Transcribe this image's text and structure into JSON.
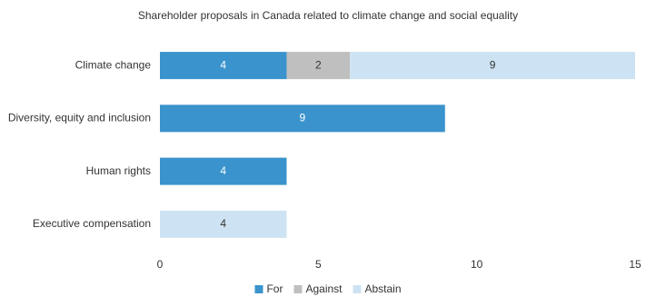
{
  "chart_data": {
    "type": "stacked-hbar",
    "title": "Shareholder  proposals  in Canada related  to climate change  and social equality",
    "categories": [
      "Climate change",
      "Diversity, equity and inclusion",
      "Human rights",
      "Executive compensation"
    ],
    "series": [
      {
        "name": "For",
        "color": "#3a93cc",
        "values": [
          4,
          9,
          4,
          0
        ]
      },
      {
        "name": "Against",
        "color": "#bfbfbf",
        "values": [
          2,
          0,
          0,
          0
        ]
      },
      {
        "name": "Abstain",
        "color": "#cde3f3",
        "values": [
          9,
          0,
          0,
          4
        ]
      }
    ],
    "xlim": [
      0,
      15
    ],
    "xticks": [
      0,
      5,
      10,
      15
    ],
    "legend": "bottom"
  }
}
